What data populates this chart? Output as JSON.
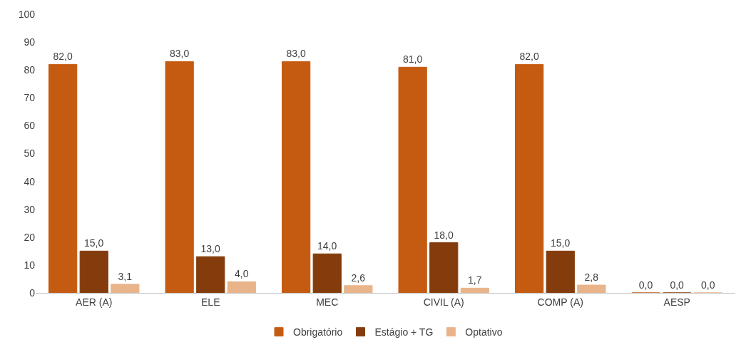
{
  "chart_data": {
    "type": "bar",
    "categories": [
      "AER (A)",
      "ELE",
      "MEC",
      "CIVIL (A)",
      "COMP (A)",
      "AESP"
    ],
    "series": [
      {
        "name": "Obrigatório",
        "color": "#c55a11",
        "values": [
          82.0,
          83.0,
          83.0,
          81.0,
          82.0,
          0.0
        ],
        "value_labels": [
          "82,0",
          "83,0",
          "83,0",
          "81,0",
          "82,0",
          "0,0"
        ]
      },
      {
        "name": "Estágio + TG",
        "color": "#843c0c",
        "values": [
          15.0,
          13.0,
          14.0,
          18.0,
          15.0,
          0.0
        ],
        "value_labels": [
          "15,0",
          "13,0",
          "14,0",
          "18,0",
          "15,0",
          "0,0"
        ]
      },
      {
        "name": "Optativo",
        "color": "#eab48a",
        "values": [
          3.1,
          4.0,
          2.6,
          1.7,
          2.8,
          0.0
        ],
        "value_labels": [
          "3,1",
          "4,0",
          "2,6",
          "1,7",
          "2,8",
          "0,0"
        ]
      }
    ],
    "ylim": [
      0,
      100
    ],
    "yticks": [
      0,
      10,
      20,
      30,
      40,
      50,
      60,
      70,
      80,
      90,
      100
    ],
    "grid": false,
    "legend": "bottom"
  }
}
